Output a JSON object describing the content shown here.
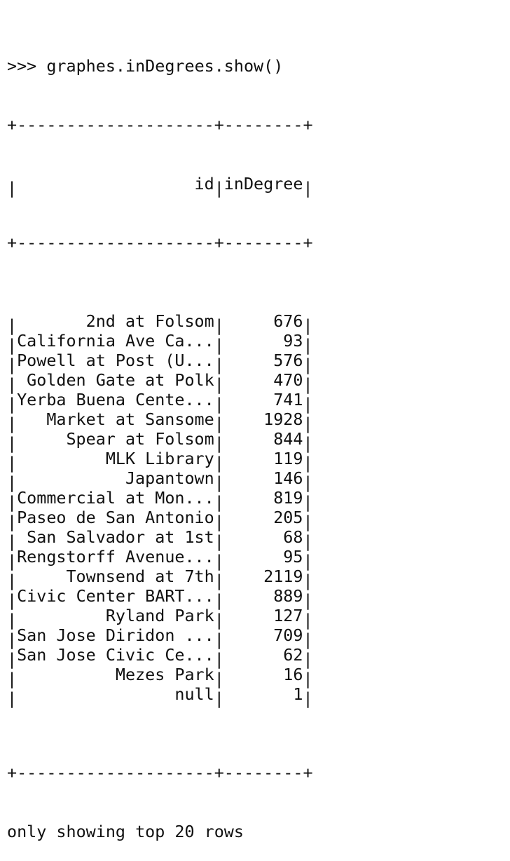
{
  "command": ">>> graphes.inDegrees.show()",
  "border": "+--------------------+--------+",
  "table": {
    "headers": {
      "id": "id",
      "in_degree": "inDegree"
    },
    "rows": [
      {
        "id": "2nd at Folsom",
        "in_degree": "676"
      },
      {
        "id": "California Ave Ca...",
        "in_degree": "93"
      },
      {
        "id": "Powell at Post (U...",
        "in_degree": "576"
      },
      {
        "id": "Golden Gate at Polk",
        "in_degree": "470"
      },
      {
        "id": "Yerba Buena Cente...",
        "in_degree": "741"
      },
      {
        "id": "Market at Sansome",
        "in_degree": "1928"
      },
      {
        "id": "Spear at Folsom",
        "in_degree": "844"
      },
      {
        "id": "MLK Library",
        "in_degree": "119"
      },
      {
        "id": "Japantown",
        "in_degree": "146"
      },
      {
        "id": "Commercial at Mon...",
        "in_degree": "819"
      },
      {
        "id": "Paseo de San Antonio",
        "in_degree": "205"
      },
      {
        "id": "San Salvador at 1st",
        "in_degree": "68"
      },
      {
        "id": "Rengstorff Avenue...",
        "in_degree": "95"
      },
      {
        "id": "Townsend at 7th",
        "in_degree": "2119"
      },
      {
        "id": "Civic Center BART...",
        "in_degree": "889"
      },
      {
        "id": "Ryland Park",
        "in_degree": "127"
      },
      {
        "id": "San Jose Diridon ...",
        "in_degree": "709"
      },
      {
        "id": "San Jose Civic Ce...",
        "in_degree": "62"
      },
      {
        "id": "Mezes Park",
        "in_degree": "16"
      },
      {
        "id": "null",
        "in_degree": "1"
      }
    ]
  },
  "footer": "only showing top 20 rows"
}
